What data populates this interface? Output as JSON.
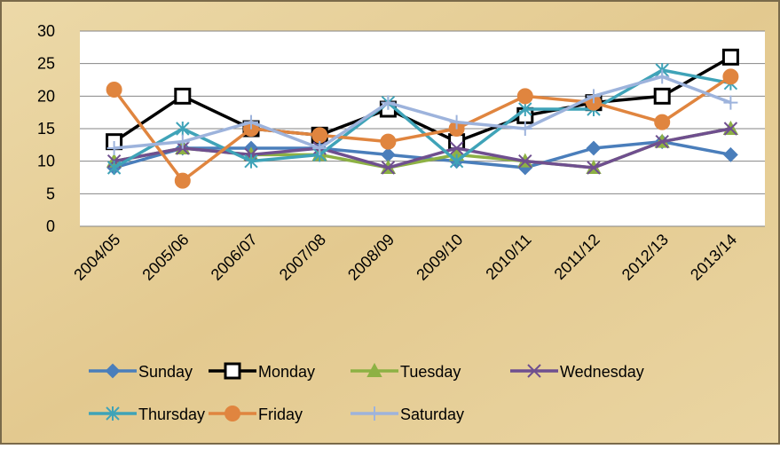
{
  "chart_data": {
    "type": "line",
    "categories": [
      "2004/05",
      "2005/06",
      "2006/07",
      "2007/08",
      "2008/09",
      "2009/10",
      "2010/11",
      "2011/12",
      "2012/13",
      "2013/14"
    ],
    "series": [
      {
        "name": "Sunday",
        "color": "#4a7ebb",
        "marker": "diamond",
        "values": [
          9,
          12,
          12,
          12,
          11,
          10,
          9,
          12,
          13,
          11
        ]
      },
      {
        "name": "Monday",
        "color": "#000000",
        "marker": "square",
        "values": [
          13,
          20,
          15,
          14,
          18,
          13,
          17,
          19,
          20,
          26
        ]
      },
      {
        "name": "Tuesday",
        "color": "#8db144",
        "marker": "triangle",
        "values": [
          10,
          12,
          11,
          11,
          9,
          11,
          10,
          9,
          13,
          15
        ]
      },
      {
        "name": "Wednesday",
        "color": "#6f4f8f",
        "marker": "x",
        "values": [
          10,
          12,
          11,
          12,
          9,
          12,
          10,
          9,
          13,
          15
        ]
      },
      {
        "name": "Thursday",
        "color": "#3fa3b8",
        "marker": "star",
        "values": [
          9,
          15,
          10,
          11,
          19,
          10,
          18,
          18,
          24,
          22
        ]
      },
      {
        "name": "Friday",
        "color": "#e0853f",
        "marker": "circle",
        "values": [
          21,
          7,
          15,
          14,
          13,
          15,
          20,
          19,
          16,
          23
        ]
      },
      {
        "name": "Saturday",
        "color": "#9db3dc",
        "marker": "plus",
        "values": [
          12,
          13,
          16,
          12,
          19,
          16,
          15,
          20,
          23,
          19
        ]
      }
    ],
    "ylim": [
      0,
      30
    ],
    "yticks": [
      0,
      5,
      10,
      15,
      20,
      25,
      30
    ],
    "grid": true,
    "legend": "bottom"
  }
}
